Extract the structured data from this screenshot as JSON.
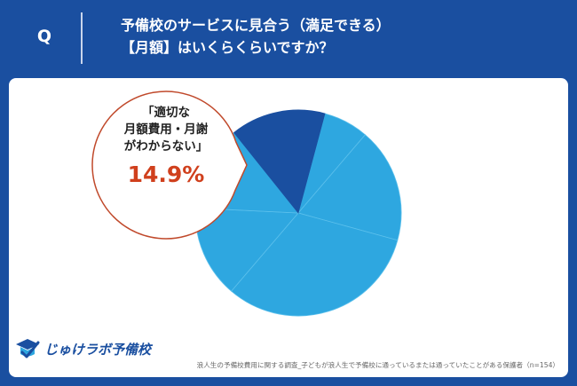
{
  "question": {
    "mark": "Q",
    "line1": "予備校のサービスに見合う（満足できる）",
    "line2": "【月額】はいくらくらいですか？"
  },
  "chart_data": {
    "type": "pie",
    "title": "予備校のサービスに見合う（満足できる）【月額】はいくらくらいですか？",
    "slices": [
      {
        "label": "",
        "value": 7.1,
        "color": "#2ea7e0"
      },
      {
        "label": "",
        "value": 18.0,
        "color": "#2ea7e0"
      },
      {
        "label": "",
        "value": 32.0,
        "color": "#2ea7e0"
      },
      {
        "label": "",
        "value": 14.5,
        "color": "#2ea7e0"
      },
      {
        "label": "",
        "value": 13.5,
        "color": "#2ea7e0"
      },
      {
        "label": "「適切な月額費用・月謝がわからない」",
        "value": 14.9,
        "color": "#1a4fa0"
      }
    ],
    "start_angle_deg": 15.0,
    "highlight": {
      "line1": "「適切な",
      "line2": "月額費用・月謝",
      "line3": "がわからない」",
      "value_label": "14.9%"
    }
  },
  "colors": {
    "background": "#1a4fa0",
    "panel": "#ffffff",
    "slice_light": "#2ea7e0",
    "slice_dark": "#1a4fa0",
    "callout_border": "#c0492b",
    "percent": "#d0401d"
  },
  "logo": {
    "text": "じゅけラボ予備校",
    "icon": "graduation-cap-check-icon"
  },
  "source": "浪人生の予備校費用に関する調査_子どもが浪人生で予備校に通っているまたは通っていたことがある保護者（n=154）"
}
